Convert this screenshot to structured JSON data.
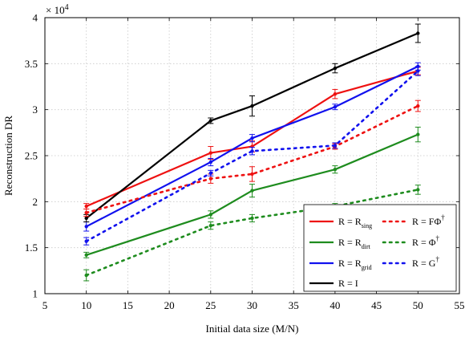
{
  "chart_data": {
    "type": "line",
    "xlabel": "Initial data size (M/N)",
    "ylabel": "Reconstruction DR",
    "y_multiplier_label": "× 10",
    "y_multiplier_exp": "4",
    "xlim": [
      5,
      55
    ],
    "ylim": [
      1,
      4
    ],
    "xticks": [
      5,
      10,
      15,
      20,
      25,
      30,
      35,
      40,
      45,
      50,
      55
    ],
    "yticks": [
      1,
      1.5,
      2,
      2.5,
      3,
      3.5,
      4
    ],
    "xtick_labels": [
      "5",
      "10",
      "15",
      "20",
      "25",
      "30",
      "35",
      "40",
      "45",
      "50",
      "55"
    ],
    "ytick_labels": [
      "1",
      "1.5",
      "2",
      "2.5",
      "3",
      "3.5",
      "4"
    ],
    "grid": true,
    "legend_location": "bottom-right",
    "x": [
      10,
      25,
      30,
      40,
      50
    ],
    "series": [
      {
        "name": "R = R",
        "sub": "sing",
        "sup": "",
        "color": "#ee1111",
        "style": "solid",
        "values": [
          1.95,
          2.53,
          2.6,
          3.17,
          3.42
        ],
        "errors": [
          0.03,
          0.07,
          0.06,
          0.05,
          0.04
        ]
      },
      {
        "name": "R = R",
        "sub": "dirt",
        "sup": "",
        "color": "#1e8c1e",
        "style": "solid",
        "values": [
          1.42,
          1.86,
          2.12,
          2.35,
          2.73
        ],
        "errors": [
          0.03,
          0.04,
          0.07,
          0.04,
          0.08
        ]
      },
      {
        "name": "R = R",
        "sub": "grid",
        "sup": "",
        "color": "#1111ee",
        "style": "solid",
        "values": [
          1.73,
          2.43,
          2.69,
          3.03,
          3.47
        ],
        "errors": [
          0.05,
          0.04,
          0.04,
          0.03,
          0.04
        ]
      },
      {
        "name": "R = I",
        "sub": "",
        "sup": "",
        "color": "#000000",
        "style": "solid",
        "values": [
          1.82,
          2.88,
          3.04,
          3.45,
          3.83
        ],
        "errors": [
          0.04,
          0.03,
          0.11,
          0.05,
          0.1
        ]
      },
      {
        "name": "R = FΦ",
        "sub": "",
        "sup": "†",
        "color": "#ee1111",
        "style": "dotted",
        "values": [
          1.88,
          2.25,
          2.3,
          2.6,
          3.04
        ],
        "errors": [
          0.04,
          0.05,
          0.08,
          0.03,
          0.06
        ]
      },
      {
        "name": "R = Φ",
        "sub": "",
        "sup": "†",
        "color": "#1e8c1e",
        "style": "dotted",
        "values": [
          1.2,
          1.74,
          1.82,
          1.95,
          2.13
        ],
        "errors": [
          0.06,
          0.04,
          0.04,
          0.03,
          0.05
        ]
      },
      {
        "name": "R = G",
        "sub": "",
        "sup": "†",
        "color": "#1111ee",
        "style": "dotted",
        "values": [
          1.57,
          2.31,
          2.55,
          2.61,
          3.42
        ],
        "errors": [
          0.04,
          0.03,
          0.04,
          0.03,
          0.05
        ]
      }
    ]
  }
}
